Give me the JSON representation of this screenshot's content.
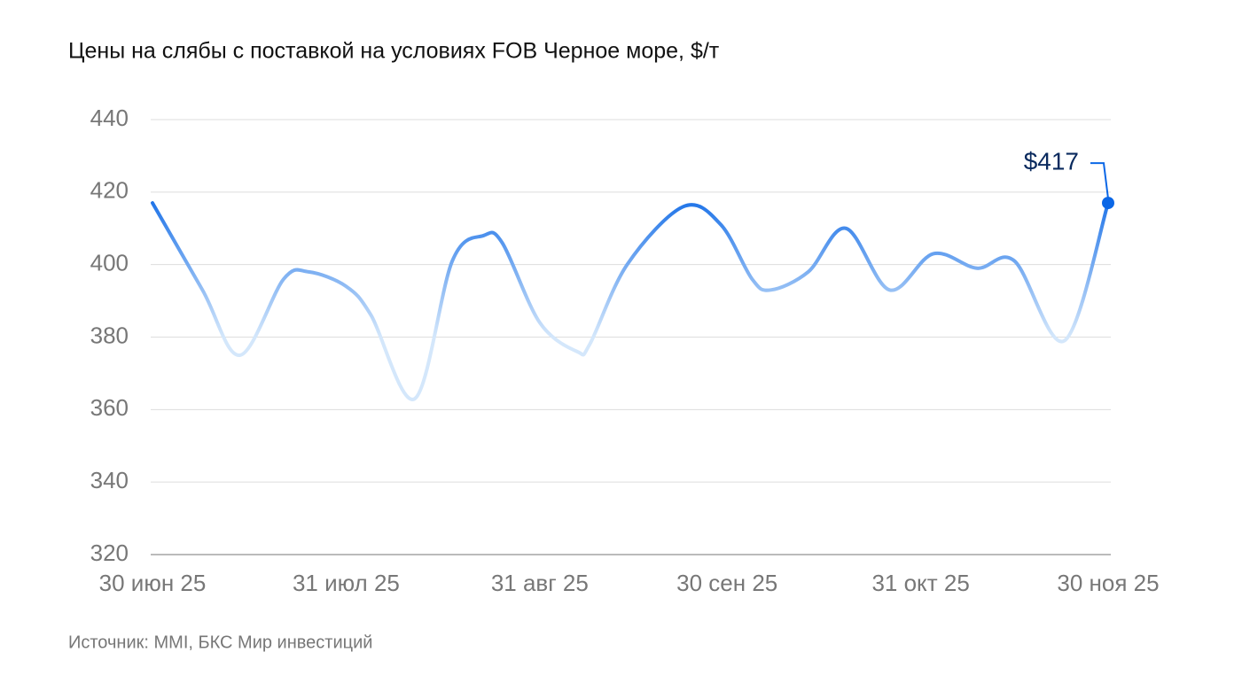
{
  "chart_data": {
    "type": "line",
    "title": "Цены на слябы с поставкой на условиях FOB Черное море, $/т",
    "source": "Источник: MMI, БКС Мир инвестиций",
    "x": [
      "2025-06-30",
      "2025-07-08",
      "2025-07-14",
      "2025-07-21",
      "2025-07-25",
      "2025-07-31",
      "2025-08-04",
      "2025-08-11",
      "2025-08-17",
      "2025-08-22",
      "2025-08-25",
      "2025-08-31",
      "2025-09-06",
      "2025-09-08",
      "2025-09-14",
      "2025-09-23",
      "2025-09-29",
      "2025-10-04",
      "2025-10-07",
      "2025-10-13",
      "2025-10-19",
      "2025-10-26",
      "2025-11-02",
      "2025-11-09",
      "2025-11-15",
      "2025-11-23",
      "2025-11-30"
    ],
    "series": [
      {
        "color": "#0b67e6",
        "values": [
          417,
          393,
          375,
          396,
          398,
          394,
          386,
          363,
          401,
          408,
          406,
          384,
          376,
          378,
          400,
          416,
          411,
          396,
          393,
          398,
          410,
          393,
          403,
          399,
          401,
          379,
          417
        ],
        "value_labels": [
          null,
          null,
          null,
          null,
          null,
          null,
          null,
          null,
          null,
          null,
          null,
          null,
          null,
          null,
          null,
          null,
          null,
          null,
          null,
          null,
          null,
          null,
          null,
          null,
          null,
          null,
          "$417"
        ]
      }
    ],
    "gradient_colors": [
      "#0b67e6",
      "#d4e7fb"
    ],
    "xlim": [
      "2025-06-30",
      "2025-11-30"
    ],
    "xticks": [
      {
        "value": "2025-06-30",
        "label": "30 июн 25"
      },
      {
        "value": "2025-07-31",
        "label": "31 июл 25"
      },
      {
        "value": "2025-08-31",
        "label": "31 авг 25"
      },
      {
        "value": "2025-09-30",
        "label": "30 сен 25"
      },
      {
        "value": "2025-10-31",
        "label": "31 окт 25"
      },
      {
        "value": "2025-11-30",
        "label": "30 ноя 25"
      }
    ],
    "ylim": [
      320,
      440
    ],
    "yticks": [
      320,
      340,
      360,
      380,
      400,
      420,
      440
    ],
    "grid": true
  }
}
